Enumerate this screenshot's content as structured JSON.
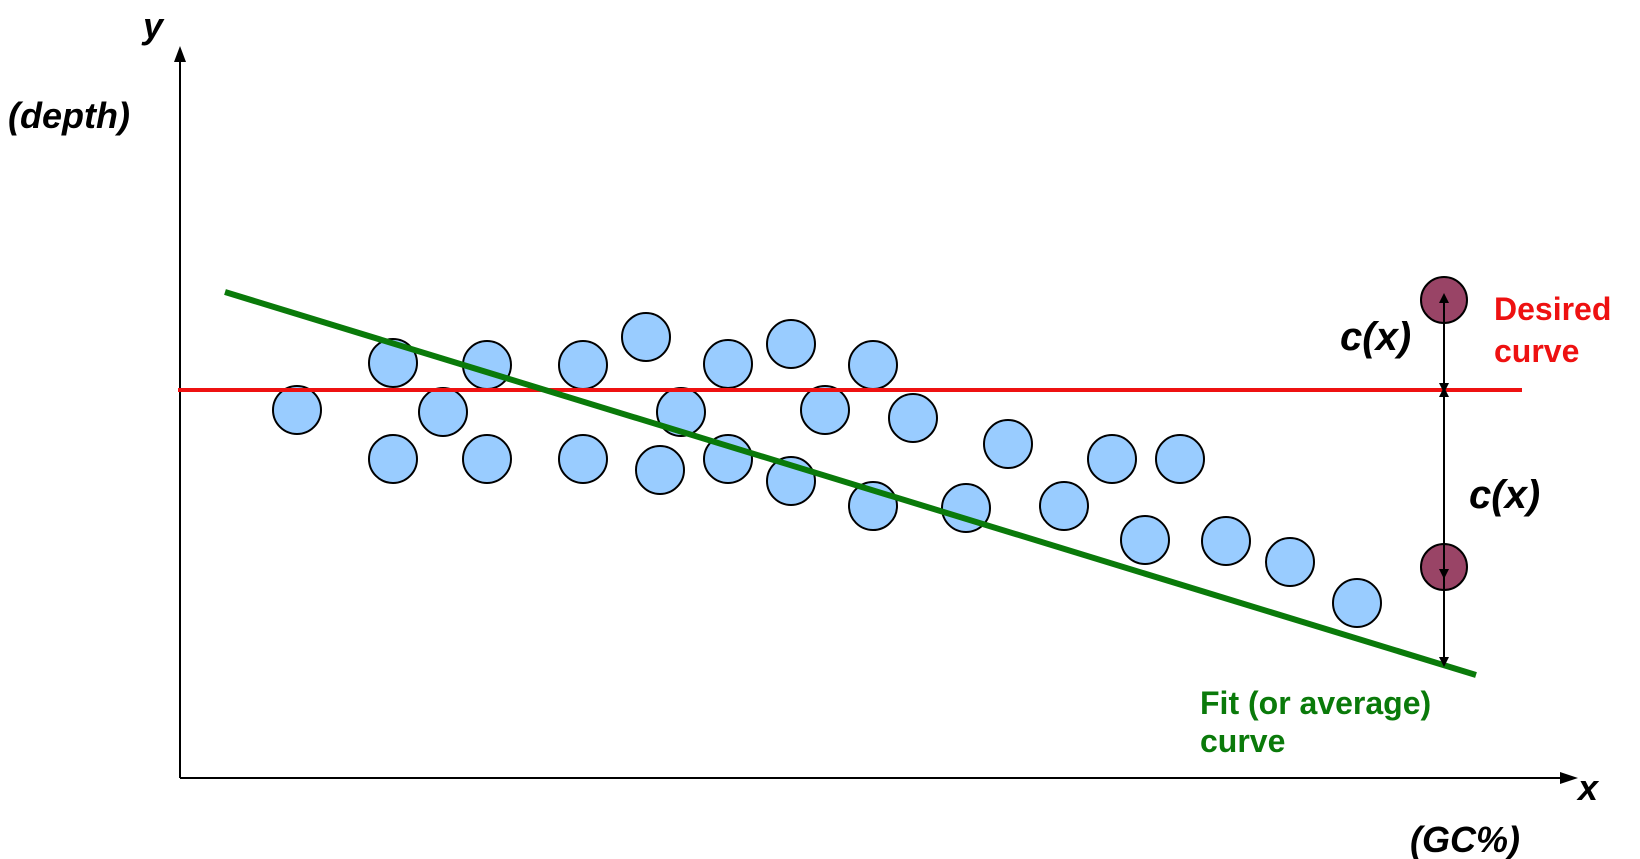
{
  "axes": {
    "y_label": "y",
    "y_sublabel": "(depth)",
    "x_label": "x",
    "x_sublabel": "(GC%)"
  },
  "annotations": {
    "desired_curve_line1": "Desired",
    "desired_curve_line2": "curve",
    "fit_curve_line1": "Fit (or average)",
    "fit_curve_line2": "curve",
    "cx_upper": "c(x)",
    "cx_lower": "c(x)"
  },
  "colors": {
    "axis": "#000000",
    "desired_curve": "#ee1111",
    "fit_curve": "#0a7a0a",
    "point_fill": "#99ccff",
    "highlight_fill": "#994466",
    "desired_text": "#ee1111",
    "fit_text": "#0a7a0a"
  }
}
